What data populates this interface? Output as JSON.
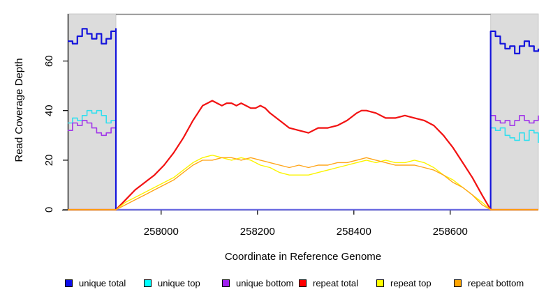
{
  "chart_data": {
    "type": "line",
    "title": "",
    "xlabel": "Coordinate in Reference Genome",
    "ylabel": "Read Coverage Depth",
    "xlim": [
      257806,
      258783
    ],
    "ylim": [
      0,
      79
    ],
    "xticks": [
      258000,
      258200,
      258400,
      258600
    ],
    "yticks": [
      0,
      20,
      40,
      60
    ],
    "grid": false,
    "legend_position": "bottom",
    "shaded_regions": {
      "color": "#dcdcdc",
      "border_color": "#c9c9c9",
      "left": [
        257806,
        257906
      ],
      "right": [
        258684,
        258783
      ]
    },
    "repeat_span_line": {
      "from": 257906,
      "to": 258684,
      "color": "#858585"
    },
    "baseline_middle": {
      "from": 257906,
      "to": 258684,
      "value": 0,
      "color": "#6E6EE2"
    },
    "axis_color": "#000000",
    "series": [
      {
        "name": "unique top",
        "color": "#33DFEE",
        "step": true,
        "points": [
          [
            257806,
            35
          ],
          [
            257816,
            37
          ],
          [
            257826,
            36
          ],
          [
            257836,
            38
          ],
          [
            257846,
            40
          ],
          [
            257856,
            39
          ],
          [
            257866,
            40
          ],
          [
            257876,
            38
          ],
          [
            257886,
            35
          ],
          [
            257896,
            36
          ],
          [
            257906,
            38
          ],
          [
            257906,
            0
          ],
          [
            258684,
            0
          ],
          [
            258684,
            33
          ],
          [
            258694,
            32
          ],
          [
            258704,
            33
          ],
          [
            258714,
            30
          ],
          [
            258724,
            29
          ],
          [
            258734,
            28
          ],
          [
            258744,
            31
          ],
          [
            258754,
            28
          ],
          [
            258764,
            32
          ],
          [
            258774,
            31
          ],
          [
            258783,
            27
          ]
        ]
      },
      {
        "name": "unique bottom",
        "color": "#A136E9",
        "step": true,
        "points": [
          [
            257806,
            32
          ],
          [
            257816,
            35
          ],
          [
            257826,
            34
          ],
          [
            257836,
            36
          ],
          [
            257846,
            35
          ],
          [
            257856,
            33
          ],
          [
            257866,
            31
          ],
          [
            257876,
            30
          ],
          [
            257886,
            31
          ],
          [
            257896,
            33
          ],
          [
            257906,
            36
          ],
          [
            257906,
            0
          ],
          [
            258684,
            0
          ],
          [
            258684,
            38
          ],
          [
            258694,
            36
          ],
          [
            258704,
            35
          ],
          [
            258714,
            36
          ],
          [
            258724,
            34
          ],
          [
            258734,
            36
          ],
          [
            258744,
            38
          ],
          [
            258754,
            36
          ],
          [
            258764,
            35
          ],
          [
            258774,
            36
          ],
          [
            258783,
            38
          ]
        ]
      },
      {
        "name": "unique total",
        "color": "#1414DC",
        "step": true,
        "points": [
          [
            257806,
            68
          ],
          [
            257816,
            67
          ],
          [
            257826,
            70
          ],
          [
            257836,
            73
          ],
          [
            257846,
            71
          ],
          [
            257856,
            69
          ],
          [
            257866,
            71
          ],
          [
            257876,
            67
          ],
          [
            257886,
            69
          ],
          [
            257896,
            72
          ],
          [
            257906,
            73
          ],
          [
            257906,
            0
          ],
          [
            258684,
            0
          ],
          [
            258684,
            72
          ],
          [
            258694,
            70
          ],
          [
            258704,
            67
          ],
          [
            258714,
            65
          ],
          [
            258724,
            66
          ],
          [
            258734,
            63
          ],
          [
            258744,
            66
          ],
          [
            258754,
            68
          ],
          [
            258764,
            66
          ],
          [
            258774,
            64
          ],
          [
            258783,
            65
          ]
        ]
      },
      {
        "name": "repeat total",
        "color": "#F21212",
        "step": false,
        "points": [
          [
            257806,
            0
          ],
          [
            257906,
            0
          ],
          [
            257926,
            4
          ],
          [
            257946,
            8
          ],
          [
            257966,
            11
          ],
          [
            257986,
            14
          ],
          [
            258006,
            18
          ],
          [
            258026,
            23
          ],
          [
            258046,
            29
          ],
          [
            258066,
            36
          ],
          [
            258076,
            39
          ],
          [
            258086,
            42
          ],
          [
            258096,
            43
          ],
          [
            258106,
            44
          ],
          [
            258116,
            43
          ],
          [
            258126,
            42
          ],
          [
            258136,
            43
          ],
          [
            258146,
            43
          ],
          [
            258156,
            42
          ],
          [
            258166,
            43
          ],
          [
            258176,
            42
          ],
          [
            258186,
            41
          ],
          [
            258196,
            41
          ],
          [
            258206,
            42
          ],
          [
            258216,
            41
          ],
          [
            258226,
            39
          ],
          [
            258246,
            36
          ],
          [
            258266,
            33
          ],
          [
            258286,
            32
          ],
          [
            258306,
            31
          ],
          [
            258326,
            33
          ],
          [
            258346,
            33
          ],
          [
            258366,
            34
          ],
          [
            258386,
            36
          ],
          [
            258406,
            39
          ],
          [
            258416,
            40
          ],
          [
            258426,
            40
          ],
          [
            258446,
            39
          ],
          [
            258466,
            37
          ],
          [
            258486,
            37
          ],
          [
            258506,
            38
          ],
          [
            258526,
            37
          ],
          [
            258546,
            36
          ],
          [
            258566,
            34
          ],
          [
            258586,
            30
          ],
          [
            258606,
            25
          ],
          [
            258626,
            19
          ],
          [
            258646,
            13
          ],
          [
            258666,
            6
          ],
          [
            258684,
            0
          ],
          [
            258783,
            0
          ]
        ]
      },
      {
        "name": "repeat top",
        "color": "#FBF400",
        "step": false,
        "points": [
          [
            257806,
            0
          ],
          [
            257906,
            0
          ],
          [
            257926,
            3
          ],
          [
            257946,
            5
          ],
          [
            257966,
            7
          ],
          [
            257986,
            9
          ],
          [
            258006,
            11
          ],
          [
            258026,
            13
          ],
          [
            258046,
            16
          ],
          [
            258066,
            19
          ],
          [
            258086,
            21
          ],
          [
            258106,
            22
          ],
          [
            258126,
            21
          ],
          [
            258146,
            20
          ],
          [
            258166,
            21
          ],
          [
            258186,
            20
          ],
          [
            258206,
            18
          ],
          [
            258226,
            17
          ],
          [
            258246,
            15
          ],
          [
            258266,
            14
          ],
          [
            258286,
            14
          ],
          [
            258306,
            14
          ],
          [
            258326,
            15
          ],
          [
            258346,
            16
          ],
          [
            258366,
            17
          ],
          [
            258386,
            18
          ],
          [
            258406,
            19
          ],
          [
            258426,
            20
          ],
          [
            258446,
            19
          ],
          [
            258466,
            20
          ],
          [
            258486,
            19
          ],
          [
            258506,
            19
          ],
          [
            258526,
            20
          ],
          [
            258546,
            19
          ],
          [
            258566,
            17
          ],
          [
            258586,
            14
          ],
          [
            258606,
            12
          ],
          [
            258626,
            9
          ],
          [
            258646,
            6
          ],
          [
            258666,
            3
          ],
          [
            258684,
            0
          ],
          [
            258783,
            0
          ]
        ]
      },
      {
        "name": "repeat bottom",
        "color": "#FFA519",
        "step": false,
        "points": [
          [
            257806,
            0
          ],
          [
            257906,
            0
          ],
          [
            257926,
            2
          ],
          [
            257946,
            4
          ],
          [
            257966,
            6
          ],
          [
            257986,
            8
          ],
          [
            258006,
            10
          ],
          [
            258026,
            12
          ],
          [
            258046,
            15
          ],
          [
            258066,
            18
          ],
          [
            258086,
            20
          ],
          [
            258106,
            20
          ],
          [
            258126,
            21
          ],
          [
            258146,
            21
          ],
          [
            258166,
            20
          ],
          [
            258186,
            21
          ],
          [
            258206,
            20
          ],
          [
            258226,
            19
          ],
          [
            258246,
            18
          ],
          [
            258266,
            17
          ],
          [
            258286,
            18
          ],
          [
            258306,
            17
          ],
          [
            258326,
            18
          ],
          [
            258346,
            18
          ],
          [
            258366,
            19
          ],
          [
            258386,
            19
          ],
          [
            258406,
            20
          ],
          [
            258426,
            21
          ],
          [
            258446,
            20
          ],
          [
            258466,
            19
          ],
          [
            258486,
            18
          ],
          [
            258506,
            18
          ],
          [
            258526,
            18
          ],
          [
            258546,
            17
          ],
          [
            258566,
            16
          ],
          [
            258586,
            14
          ],
          [
            258606,
            11
          ],
          [
            258626,
            9
          ],
          [
            258646,
            6
          ],
          [
            258666,
            2
          ],
          [
            258684,
            0
          ],
          [
            258783,
            0
          ]
        ]
      }
    ]
  },
  "legend": {
    "items": [
      {
        "name": "unique-total",
        "label": "unique total",
        "color": "#0D0DEB"
      },
      {
        "name": "unique-top",
        "label": "unique top",
        "color": "#00FFFF"
      },
      {
        "name": "unique-bottom",
        "label": "unique bottom",
        "color": "#A020F0"
      },
      {
        "name": "repeat-total",
        "label": "repeat total",
        "color": "#FF0000"
      },
      {
        "name": "repeat-top",
        "label": "repeat top",
        "color": "#FFFF00"
      },
      {
        "name": "repeat-bottom",
        "label": "repeat bottom",
        "color": "#FFA500"
      }
    ]
  }
}
